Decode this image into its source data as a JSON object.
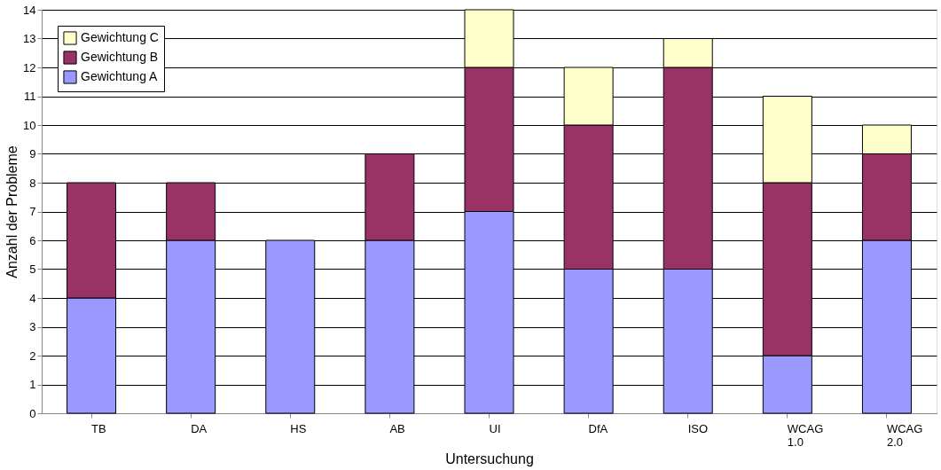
{
  "chart_data": {
    "type": "bar",
    "stacked": true,
    "xlabel": "Untersuchung",
    "ylabel": "Anzahl der Probleme",
    "categories": [
      "TB",
      "DA",
      "HS",
      "AB",
      "UI",
      "DfA",
      "ISO",
      "WCAG 1.0",
      "WCAG 2.0"
    ],
    "series": [
      {
        "name": "Gewichtung A",
        "color": "#9999ff",
        "values": [
          4,
          6,
          6,
          6,
          7,
          5,
          5,
          2,
          6
        ]
      },
      {
        "name": "Gewichtung B",
        "color": "#993366",
        "values": [
          4,
          2,
          null,
          3,
          5,
          5,
          7,
          6,
          3
        ]
      },
      {
        "name": "Gewichtung C",
        "color": "#ffffcc",
        "values": [
          null,
          null,
          null,
          null,
          2,
          2,
          1,
          3,
          1
        ]
      }
    ],
    "ylim": [
      0,
      14
    ],
    "yticks": [
      0,
      1,
      2,
      3,
      4,
      5,
      6,
      7,
      8,
      9,
      10,
      11,
      12,
      13,
      14
    ],
    "grid": "y",
    "legend": "top left"
  }
}
